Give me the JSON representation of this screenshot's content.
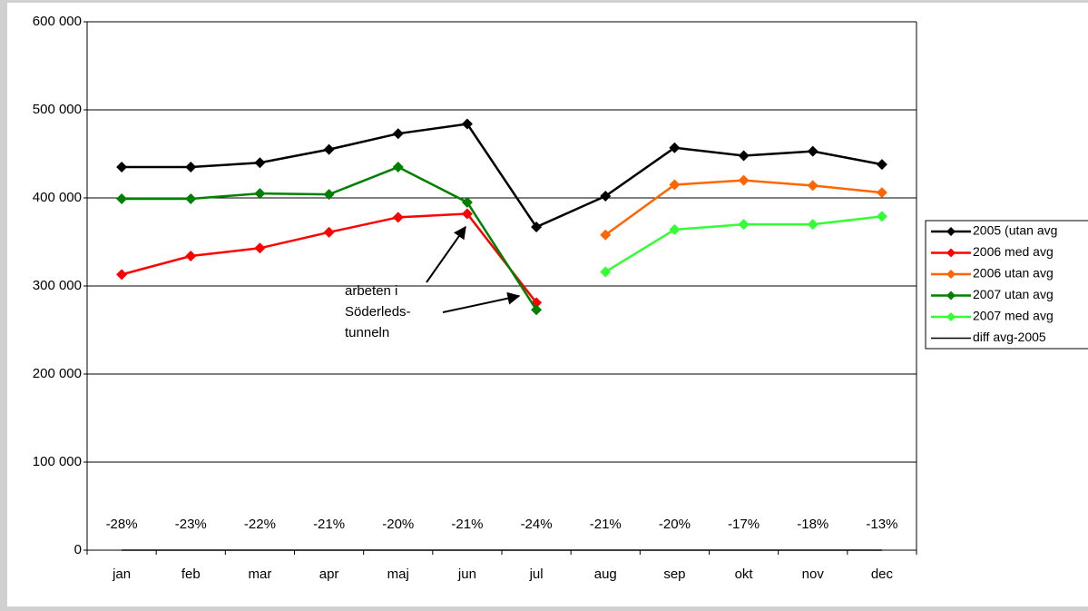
{
  "chart_data": {
    "type": "line",
    "categories": [
      "jan",
      "feb",
      "mar",
      "apr",
      "maj",
      "jun",
      "jul",
      "aug",
      "sep",
      "okt",
      "nov",
      "dec"
    ],
    "ylim": [
      0,
      600000
    ],
    "yticks": [
      {
        "value": 0,
        "label": "0"
      },
      {
        "value": 100000,
        "label": "100 000"
      },
      {
        "value": 200000,
        "label": "200 000"
      },
      {
        "value": 300000,
        "label": "300 000"
      },
      {
        "value": 400000,
        "label": "400 000"
      },
      {
        "value": 500000,
        "label": "500 000"
      },
      {
        "value": 600000,
        "label": "600 000"
      }
    ],
    "grid": true,
    "legend": "right",
    "series": [
      {
        "name": "2005 (utan avg",
        "color": "#000000",
        "values": [
          435000,
          435000,
          440000,
          455000,
          473000,
          484000,
          367000,
          402000,
          457000,
          448000,
          453000,
          438000
        ]
      },
      {
        "name": "2006 med avg",
        "color": "#ff0000",
        "values": [
          313000,
          334000,
          343000,
          361000,
          378000,
          382000,
          281000,
          null,
          null,
          null,
          null,
          null
        ]
      },
      {
        "name": "2006 utan avg",
        "color": "#ff6600",
        "values": [
          null,
          null,
          null,
          null,
          null,
          null,
          null,
          358000,
          415000,
          420000,
          414000,
          406000
        ]
      },
      {
        "name": "2007 utan avg",
        "color": "#008000",
        "values": [
          399000,
          399000,
          405000,
          404000,
          435000,
          395000,
          273000,
          null,
          null,
          null,
          null,
          null
        ]
      },
      {
        "name": "2007 med avg",
        "color": "#33ff33",
        "values": [
          null,
          null,
          null,
          null,
          null,
          null,
          null,
          316000,
          364000,
          370000,
          370000,
          379000
        ]
      },
      {
        "name": "diff avg-2005",
        "color": "#000000",
        "marker": "none",
        "values": [
          -28,
          -23,
          -22,
          -21,
          -20,
          -21,
          -24,
          -21,
          -20,
          -17,
          -18,
          -13
        ],
        "value_labels": [
          "-28%",
          "-23%",
          "-22%",
          "-21%",
          "-20%",
          "-21%",
          "-24%",
          "-21%",
          "-20%",
          "-17%",
          "-18%",
          "-13%"
        ]
      }
    ],
    "annotation": {
      "lines": [
        "arbeten i",
        "Söderleds-",
        "tunneln"
      ]
    }
  }
}
